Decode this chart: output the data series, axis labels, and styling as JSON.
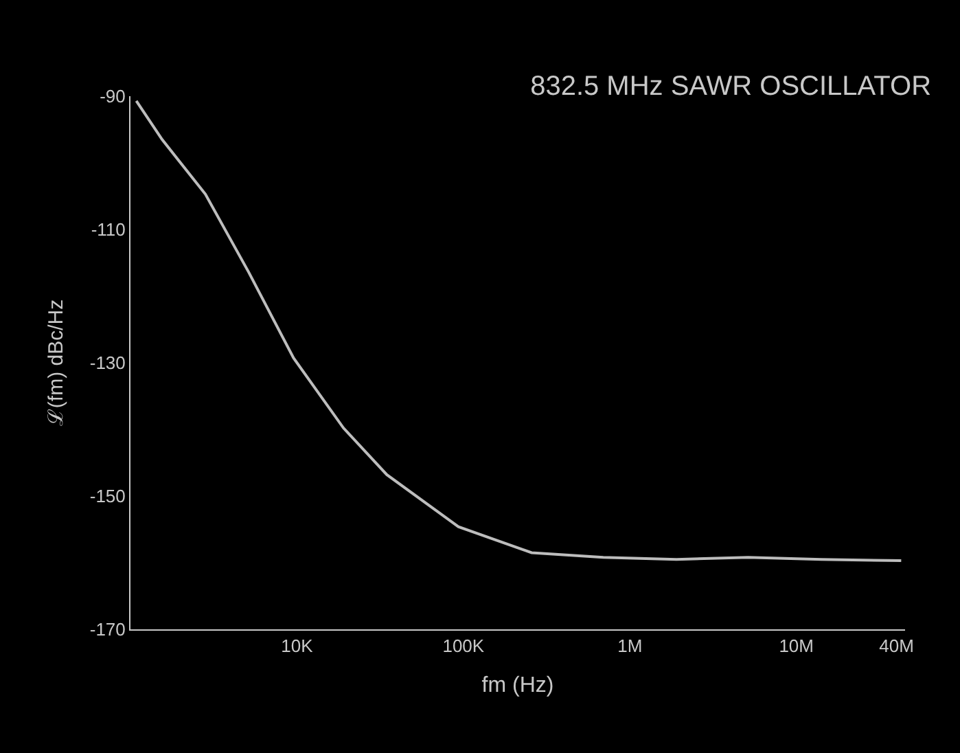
{
  "chart_data": {
    "type": "line",
    "title": "832.5 MHz SAWR OSCILLATOR",
    "xlabel": "fm (Hz)",
    "ylabel": "ℒ(fm) dBc/Hz",
    "log": "x",
    "xlim": [
      1000,
      45000000
    ],
    "ylim": [
      -170,
      -90
    ],
    "xticks": [
      {
        "value": 10000,
        "label": "10K"
      },
      {
        "value": 100000,
        "label": "100K"
      },
      {
        "value": 1000000,
        "label": "1M"
      },
      {
        "value": 10000000,
        "label": "10M"
      },
      {
        "value": 40000000,
        "label": "40M"
      }
    ],
    "yticks": [
      -170,
      -150,
      -130,
      -110,
      -90
    ],
    "grid": false,
    "series": [
      {
        "color": "#bdbdbd",
        "x": [
          1084,
          1549,
          2818,
          5129,
          9550,
          19050,
          34670,
          93300,
          257000,
          692000,
          1905000,
          5129000,
          14130000,
          42660000
        ],
        "values": [
          -90.7,
          -96.5,
          -104.7,
          -116.4,
          -129.3,
          -139.8,
          -146.8,
          -154.6,
          -158.5,
          -159.2,
          -159.5,
          -159.2,
          -159.5,
          -159.7
        ]
      }
    ]
  }
}
